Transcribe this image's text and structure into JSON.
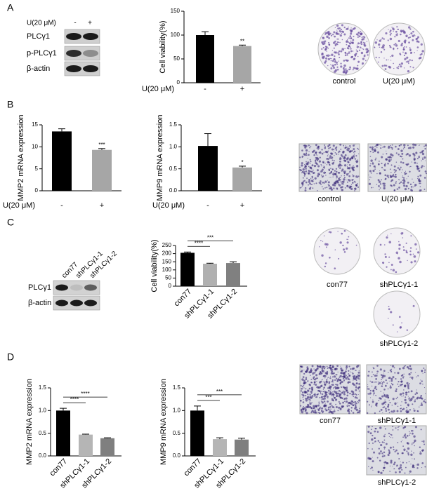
{
  "figure": {
    "panel_labels": [
      "A",
      "B",
      "C",
      "D"
    ],
    "blot_a": {
      "treatment_label": "U(20 μM)",
      "lanes": [
        "-",
        "+"
      ],
      "rows": [
        "PLCγ1",
        "p-PLCγ1",
        "β-actin"
      ]
    },
    "blot_c": {
      "lanes": [
        "con77",
        "shPLCγ1-1",
        "shPLCγ1-2"
      ],
      "rows": [
        "PLCγ1",
        "β-actin"
      ]
    },
    "images_a": [
      "control",
      "U(20 μM)"
    ],
    "images_b": [
      "control",
      "U(20 μM)"
    ],
    "images_c": [
      "con77",
      "shPLCγ1-1",
      "shPLCγ1-2"
    ],
    "images_d": [
      "con77",
      "shPLCγ1-1",
      "shPLCγ1-2"
    ]
  },
  "chart_data": [
    {
      "type": "bar",
      "ylabel": "Cell viability(%)",
      "xlabel": "U(20 μM)",
      "categories": [
        "-",
        "+"
      ],
      "values": [
        100,
        77
      ],
      "errors": [
        7,
        2
      ],
      "colors": [
        "#000000",
        "#a6a6a6"
      ],
      "ylim": [
        0,
        150
      ],
      "yticks": [
        0,
        50,
        100,
        150
      ],
      "annotations": [
        {
          "text": "**",
          "bars": [
            1
          ]
        }
      ]
    },
    {
      "type": "bar",
      "ylabel": "MMP2 mRNA expression",
      "xlabel": "U(20 μM)",
      "categories": [
        "-",
        "+"
      ],
      "values": [
        13.5,
        9.3
      ],
      "errors": [
        0.6,
        0.3
      ],
      "colors": [
        "#000000",
        "#a6a6a6"
      ],
      "ylim": [
        0,
        15
      ],
      "yticks": [
        0,
        5,
        10,
        15
      ],
      "annotations": [
        {
          "text": "***",
          "bars": [
            1
          ]
        }
      ]
    },
    {
      "type": "bar",
      "ylabel": "MMP9 mRNA expression",
      "xlabel": "U(20 μM)",
      "categories": [
        "-",
        "+"
      ],
      "values": [
        1.02,
        0.53
      ],
      "errors": [
        0.28,
        0.03
      ],
      "colors": [
        "#000000",
        "#a6a6a6"
      ],
      "ylim": [
        0,
        1.5
      ],
      "yticks": [
        {
          "value": 0,
          "label": "0.0"
        },
        0.5,
        {
          "value": 1,
          "label": "1.0"
        },
        1.5
      ],
      "annotations": [
        {
          "text": "*",
          "bars": [
            1
          ]
        }
      ]
    },
    {
      "type": "bar",
      "ylabel": "Cell viability(%)",
      "categories": [
        "con77",
        "shPLCγ1-1",
        "shPLCγ1-2"
      ],
      "values": [
        205,
        138,
        142
      ],
      "errors": [
        5,
        3,
        8
      ],
      "colors": [
        "#000000",
        "#b0b0b0",
        "#808080"
      ],
      "ylim": [
        0,
        250
      ],
      "yticks": [
        0,
        50,
        100,
        150,
        200,
        250
      ],
      "annotations": [
        {
          "text": "****",
          "bars": [
            0,
            1
          ]
        },
        {
          "text": "***",
          "bars": [
            0,
            2
          ]
        }
      ]
    },
    {
      "type": "bar",
      "ylabel": "MMP2 mRNA expression",
      "categories": [
        "con77",
        "shPLCγ1-1",
        "shPLCγ1-2"
      ],
      "values": [
        1.0,
        0.47,
        0.39
      ],
      "errors": [
        0.05,
        0.01,
        0.01
      ],
      "colors": [
        "#000000",
        "#b5b5b5",
        "#7f7f7f"
      ],
      "ylim": [
        0,
        1.5
      ],
      "yticks": [
        {
          "value": 0,
          "label": "0.0"
        },
        0.5,
        {
          "value": 1,
          "label": "1.0"
        },
        1.5
      ],
      "annotations": [
        {
          "text": "****",
          "bars": [
            0,
            1
          ]
        },
        {
          "text": "****",
          "bars": [
            0,
            2
          ]
        }
      ]
    },
    {
      "type": "bar",
      "ylabel": "MMP9 mRNA expression",
      "categories": [
        "con77",
        "shPLCγ1-1",
        "shPLCγ1-2"
      ],
      "values": [
        1.0,
        0.37,
        0.36
      ],
      "errors": [
        0.1,
        0.03,
        0.03
      ],
      "colors": [
        "#000000",
        "#b5b5b5",
        "#7f7f7f"
      ],
      "ylim": [
        0,
        1.5
      ],
      "yticks": [
        {
          "value": 0,
          "label": "0.0"
        },
        0.5,
        {
          "value": 1,
          "label": "1.0"
        },
        1.5
      ],
      "annotations": [
        {
          "text": "***",
          "bars": [
            0,
            1
          ]
        },
        {
          "text": "***",
          "bars": [
            0,
            2
          ]
        }
      ]
    }
  ]
}
